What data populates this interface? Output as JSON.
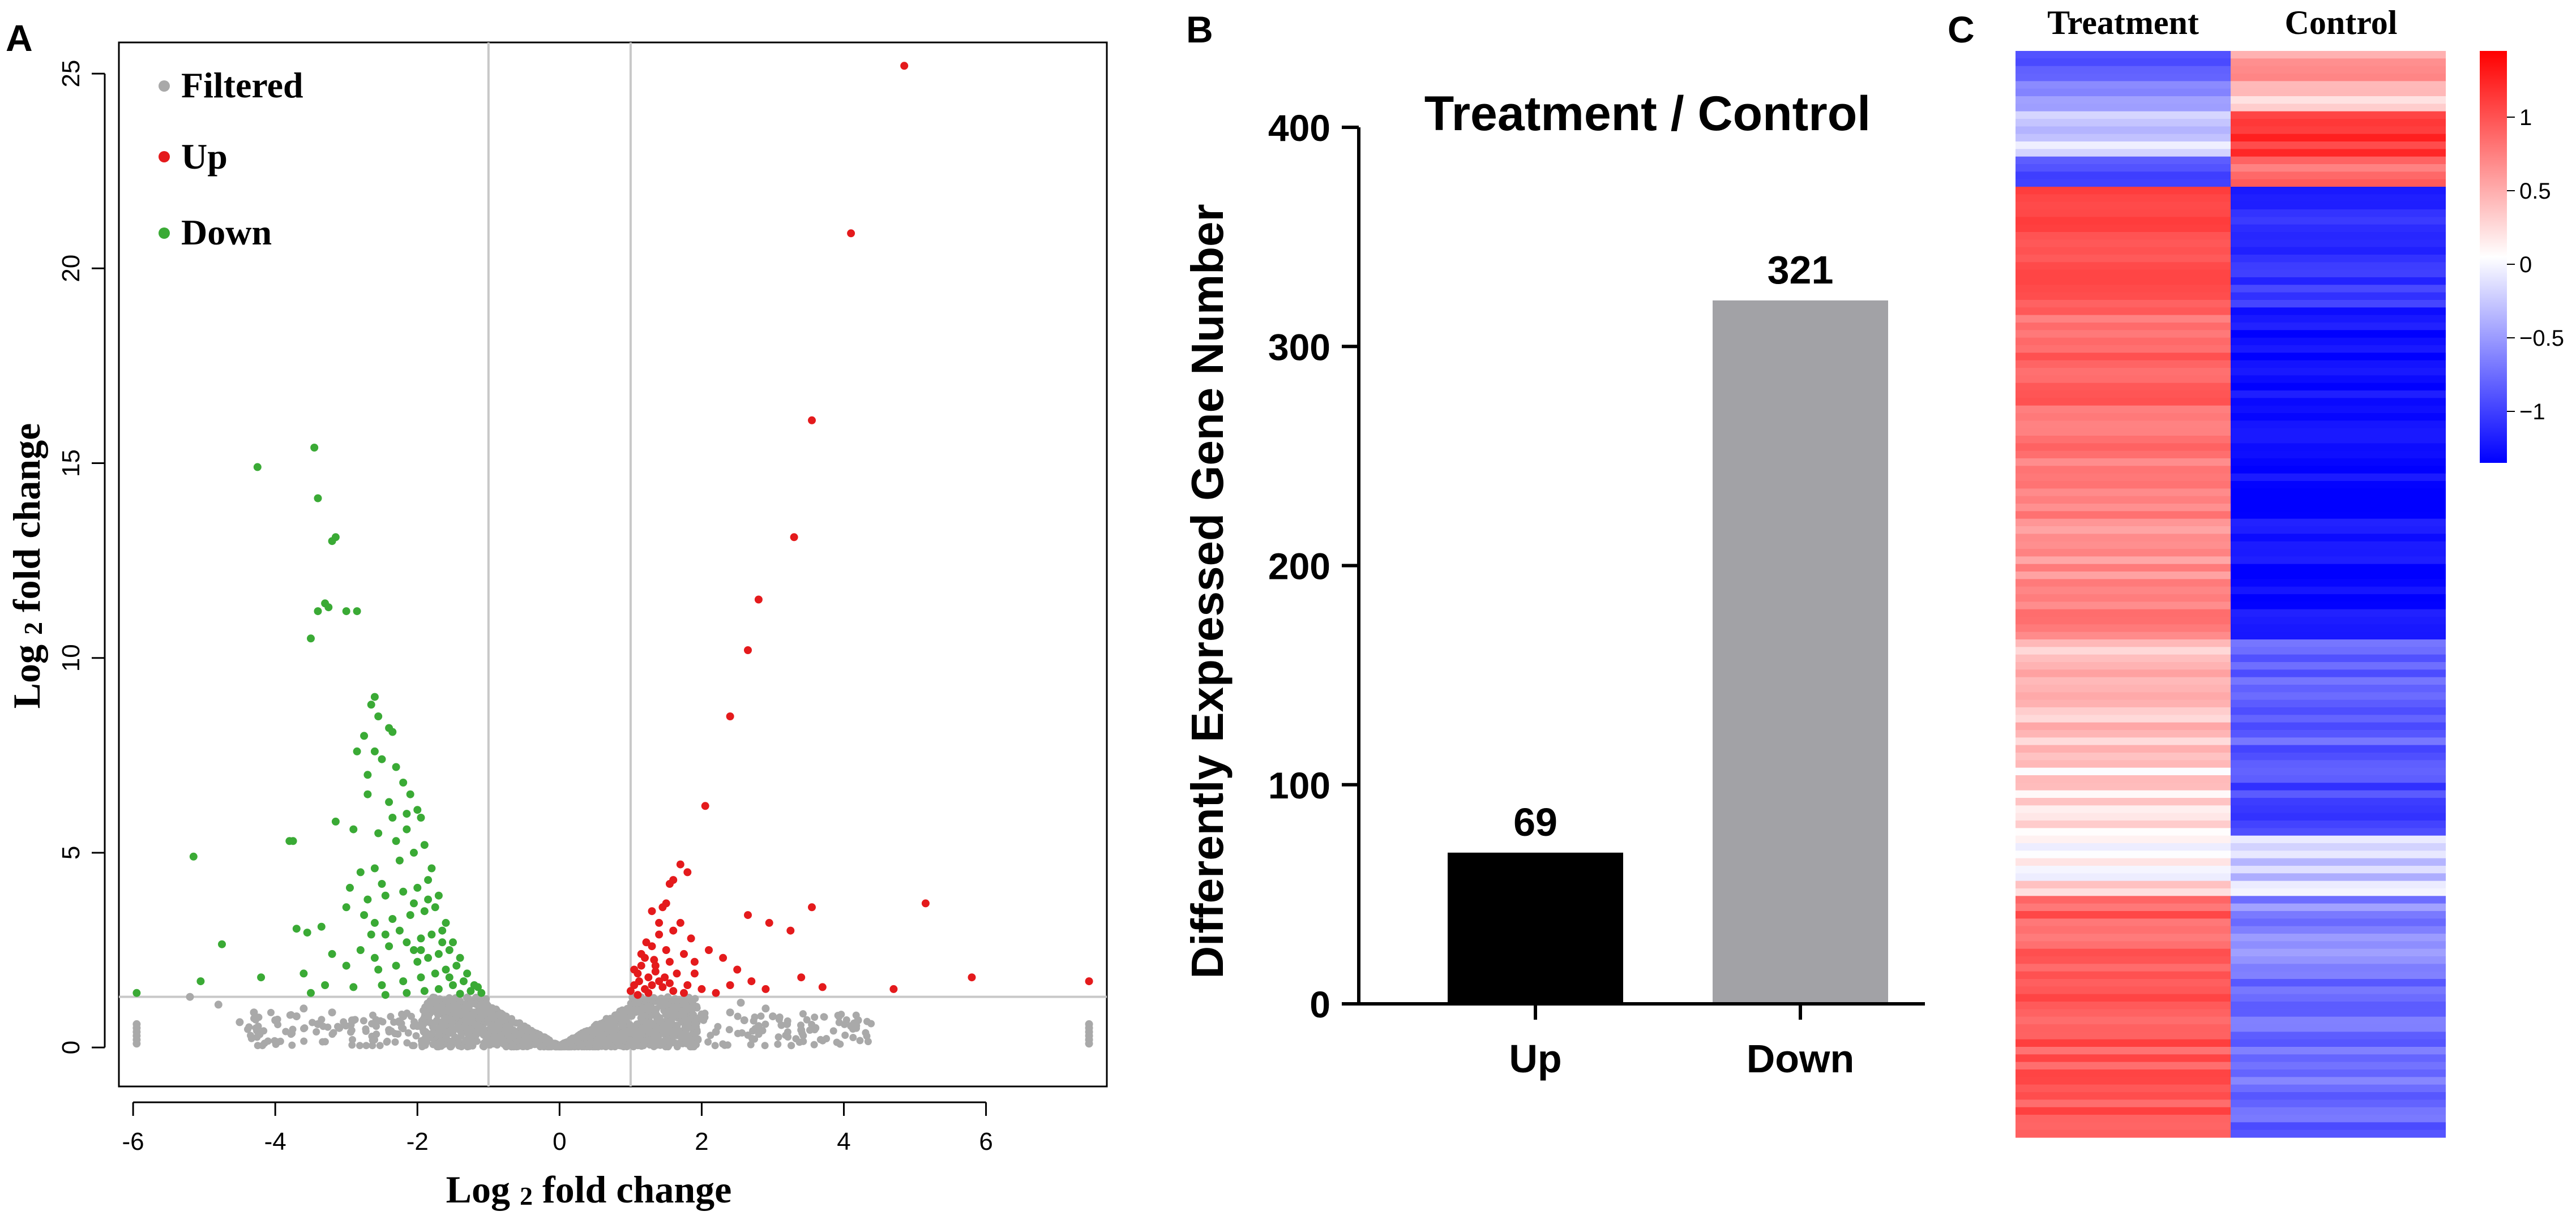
{
  "panels": {
    "a": "A",
    "b": "B",
    "c": "C"
  },
  "colors": {
    "filtered": "#a9a9a9",
    "up": "#e41a1c",
    "down": "#3aaa35",
    "bar_up": "#000000",
    "bar_down": "#a2a2a6",
    "heat_high": "#ff0000",
    "heat_mid": "#ffffff",
    "heat_low": "#0000ff",
    "threshold_line": "#c8c8c8"
  },
  "chart_data": [
    {
      "type": "scatter",
      "panel": "A",
      "title": "",
      "xlabel": "Log 2 fold change",
      "ylabel": "Log 2 fold change",
      "xlim": [
        -6.2,
        7.7
      ],
      "ylim": [
        -1.0,
        25.8
      ],
      "xticks": [
        -6,
        -4,
        -2,
        0,
        2,
        4,
        6
      ],
      "yticks": [
        0,
        5,
        10,
        15,
        20,
        25
      ],
      "thresholds": {
        "x": [
          -1,
          1
        ],
        "y": 1.3
      },
      "legend": [
        "Filtered",
        "Up",
        "Down"
      ],
      "legend_position": "top-left",
      "series": [
        {
          "name": "Up",
          "points": [
            [
              4.85,
              25.2
            ],
            [
              4.1,
              20.9
            ],
            [
              3.55,
              16.1
            ],
            [
              3.3,
              13.1
            ],
            [
              2.8,
              11.5
            ],
            [
              2.65,
              10.2
            ],
            [
              2.4,
              8.5
            ],
            [
              2.05,
              6.2
            ],
            [
              1.7,
              4.7
            ],
            [
              1.8,
              4.5
            ],
            [
              1.6,
              4.3
            ],
            [
              1.55,
              4.2
            ],
            [
              1.45,
              3.6
            ],
            [
              1.4,
              3.2
            ],
            [
              1.3,
              3.5
            ],
            [
              1.5,
              3.7
            ],
            [
              1.7,
              3.2
            ],
            [
              1.85,
              2.8
            ],
            [
              1.75,
              2.4
            ],
            [
              2.1,
              2.5
            ],
            [
              2.3,
              2.3
            ],
            [
              1.55,
              2.2
            ],
            [
              1.2,
              2.3
            ],
            [
              1.3,
              2.6
            ],
            [
              1.15,
              2.1
            ],
            [
              1.1,
              1.9
            ],
            [
              1.25,
              1.8
            ],
            [
              1.35,
              1.95
            ],
            [
              1.4,
              1.7
            ],
            [
              1.05,
              1.6
            ],
            [
              1.2,
              1.5
            ],
            [
              1.45,
              1.55
            ],
            [
              1.6,
              1.45
            ],
            [
              1.9,
              1.9
            ],
            [
              2.0,
              1.5
            ],
            [
              2.2,
              1.4
            ],
            [
              2.65,
              3.4
            ],
            [
              2.95,
              3.2
            ],
            [
              3.25,
              3.0
            ],
            [
              3.55,
              3.6
            ],
            [
              3.7,
              1.55
            ],
            [
              4.7,
              1.5
            ],
            [
              5.15,
              3.7
            ],
            [
              5.8,
              1.8
            ],
            [
              7.45,
              1.7
            ],
            [
              1.1,
              1.35
            ],
            [
              1.25,
              1.4
            ],
            [
              1.35,
              2.1
            ],
            [
              1.5,
              2.5
            ],
            [
              1.65,
              1.9
            ],
            [
              1.0,
              1.45
            ],
            [
              2.5,
              2.0
            ],
            [
              1.8,
              1.6
            ],
            [
              1.9,
              2.2
            ],
            [
              1.15,
              2.4
            ],
            [
              1.05,
              2.0
            ],
            [
              1.3,
              1.6
            ],
            [
              3.4,
              1.8
            ],
            [
              2.7,
              1.7
            ],
            [
              1.6,
              3.0
            ],
            [
              1.4,
              2.9
            ],
            [
              1.75,
              1.4
            ],
            [
              2.4,
              1.6
            ],
            [
              1.22,
              2.7
            ],
            [
              1.48,
              1.8
            ],
            [
              1.12,
              1.7
            ],
            [
              1.33,
              2.25
            ],
            [
              1.55,
              1.65
            ],
            [
              2.9,
              1.5
            ]
          ]
        },
        {
          "name": "Down",
          "points": [
            [
              -3.45,
              15.4
            ],
            [
              -4.25,
              14.9
            ],
            [
              -3.4,
              14.1
            ],
            [
              -3.15,
              13.1
            ],
            [
              -3.2,
              13.0
            ],
            [
              -3.3,
              11.4
            ],
            [
              -3.25,
              11.3
            ],
            [
              -3.4,
              11.2
            ],
            [
              -3.0,
              11.2
            ],
            [
              -2.85,
              11.2
            ],
            [
              -3.5,
              10.5
            ],
            [
              -2.6,
              9.0
            ],
            [
              -2.65,
              8.8
            ],
            [
              -2.55,
              8.5
            ],
            [
              -2.4,
              8.2
            ],
            [
              -2.35,
              8.1
            ],
            [
              -2.75,
              8.0
            ],
            [
              -2.85,
              7.6
            ],
            [
              -2.6,
              7.6
            ],
            [
              -2.5,
              7.4
            ],
            [
              -2.7,
              7.0
            ],
            [
              -2.3,
              7.2
            ],
            [
              -2.2,
              6.8
            ],
            [
              -2.1,
              6.5
            ],
            [
              -2.4,
              6.3
            ],
            [
              -2.0,
              6.1
            ],
            [
              -1.95,
              5.9
            ],
            [
              -2.15,
              5.6
            ],
            [
              -2.55,
              5.5
            ],
            [
              -2.9,
              5.6
            ],
            [
              -3.15,
              5.8
            ],
            [
              -3.8,
              5.3
            ],
            [
              -3.75,
              5.3
            ],
            [
              -5.15,
              4.9
            ],
            [
              -1.9,
              5.2
            ],
            [
              -2.05,
              5.0
            ],
            [
              -2.25,
              4.8
            ],
            [
              -2.6,
              4.6
            ],
            [
              -2.8,
              4.5
            ],
            [
              -1.8,
              4.6
            ],
            [
              -1.85,
              4.3
            ],
            [
              -2.0,
              4.1
            ],
            [
              -2.2,
              4.0
            ],
            [
              -2.45,
              3.9
            ],
            [
              -2.7,
              3.8
            ],
            [
              -3.0,
              3.6
            ],
            [
              -1.7,
              3.9
            ],
            [
              -1.75,
              3.6
            ],
            [
              -1.9,
              3.5
            ],
            [
              -2.1,
              3.4
            ],
            [
              -2.35,
              3.3
            ],
            [
              -2.6,
              3.2
            ],
            [
              -3.35,
              3.1
            ],
            [
              -3.55,
              2.95
            ],
            [
              -3.7,
              3.05
            ],
            [
              -4.75,
              2.65
            ],
            [
              -1.6,
              3.2
            ],
            [
              -1.65,
              3.0
            ],
            [
              -1.8,
              2.9
            ],
            [
              -1.95,
              2.8
            ],
            [
              -2.15,
              2.7
            ],
            [
              -2.4,
              2.6
            ],
            [
              -2.8,
              2.5
            ],
            [
              -3.2,
              2.4
            ],
            [
              -1.5,
              2.7
            ],
            [
              -1.55,
              2.5
            ],
            [
              -1.7,
              2.4
            ],
            [
              -1.85,
              2.3
            ],
            [
              -2.0,
              2.2
            ],
            [
              -2.3,
              2.1
            ],
            [
              -2.55,
              2.0
            ],
            [
              -3.0,
              2.1
            ],
            [
              -3.6,
              1.9
            ],
            [
              -4.2,
              1.8
            ],
            [
              -1.4,
              2.3
            ],
            [
              -1.45,
              2.1
            ],
            [
              -1.6,
              2.0
            ],
            [
              -1.75,
              1.9
            ],
            [
              -1.95,
              1.8
            ],
            [
              -2.2,
              1.7
            ],
            [
              -2.5,
              1.6
            ],
            [
              -2.9,
              1.55
            ],
            [
              -3.3,
              1.6
            ],
            [
              -5.05,
              1.7
            ],
            [
              -1.3,
              1.9
            ],
            [
              -1.35,
              1.7
            ],
            [
              -1.5,
              1.6
            ],
            [
              -1.7,
              1.5
            ],
            [
              -1.9,
              1.45
            ],
            [
              -2.15,
              1.4
            ],
            [
              -2.45,
              1.35
            ],
            [
              -3.5,
              1.4
            ],
            [
              -5.95,
              1.4
            ],
            [
              -1.2,
              1.6
            ],
            [
              -1.25,
              1.45
            ],
            [
              -1.4,
              1.38
            ],
            [
              -1.1,
              1.4
            ],
            [
              -1.15,
              1.55
            ],
            [
              -2.05,
              2.5
            ],
            [
              -2.25,
              3.0
            ],
            [
              -2.65,
              2.9
            ],
            [
              -1.85,
              3.8
            ],
            [
              -2.5,
              4.2
            ],
            [
              -2.95,
              4.1
            ],
            [
              -2.3,
              5.3
            ],
            [
              -2.15,
              6.0
            ],
            [
              -2.7,
              6.5
            ],
            [
              -2.35,
              5.9
            ],
            [
              -1.65,
              2.7
            ],
            [
              -1.55,
              1.8
            ],
            [
              -2.75,
              3.4
            ],
            [
              -2.05,
              3.7
            ],
            [
              -2.6,
              2.3
            ],
            [
              -1.95,
              2.5
            ],
            [
              -2.45,
              2.9
            ]
          ]
        },
        {
          "name": "Filtered",
          "points": [
            [
              -5.95,
              0.6
            ],
            [
              -5.95,
              0.5
            ],
            [
              -5.95,
              0.4
            ],
            [
              -5.95,
              0.3
            ],
            [
              -5.95,
              0.2
            ],
            [
              -5.95,
              0.1
            ],
            [
              7.45,
              0.6
            ],
            [
              7.45,
              0.5
            ],
            [
              7.45,
              0.4
            ],
            [
              7.45,
              0.3
            ],
            [
              7.45,
              0.2
            ],
            [
              7.45,
              0.1
            ],
            [
              -5.2,
              1.3
            ],
            [
              -4.8,
              1.1
            ],
            [
              -4.3,
              0.9
            ],
            [
              -4.0,
              0.7
            ],
            [
              -3.7,
              0.8
            ],
            [
              -3.4,
              0.6
            ],
            [
              -3.1,
              0.5
            ],
            [
              -2.9,
              0.7
            ],
            [
              -2.6,
              0.6
            ],
            [
              -2.4,
              0.45
            ],
            [
              -2.2,
              0.8
            ],
            [
              -2.0,
              0.55
            ],
            [
              -1.8,
              0.35
            ],
            [
              -1.6,
              0.75
            ],
            [
              -1.4,
              0.5
            ],
            [
              -1.2,
              0.9
            ],
            [
              -1.1,
              1.1
            ],
            [
              -3.6,
              1.0
            ],
            [
              -3.2,
              0.9
            ],
            [
              -4.5,
              0.65
            ],
            [
              2.4,
              0.9
            ],
            [
              2.6,
              0.7
            ],
            [
              2.8,
              0.55
            ],
            [
              3.0,
              0.8
            ],
            [
              3.2,
              0.6
            ],
            [
              3.4,
              0.45
            ],
            [
              3.6,
              0.5
            ],
            [
              4.1,
              0.55
            ],
            [
              4.2,
              0.7
            ],
            [
              2.2,
              0.4
            ],
            [
              2.0,
              0.85
            ],
            [
              1.8,
              0.6
            ],
            [
              1.6,
              0.3
            ],
            [
              1.4,
              0.7
            ],
            [
              1.2,
              1.0
            ],
            [
              1.1,
              1.15
            ],
            [
              2.55,
              1.15
            ],
            [
              2.9,
              1.0
            ]
          ]
        }
      ]
    },
    {
      "type": "bar",
      "panel": "B",
      "title": "Treatment / Control",
      "xlabel": "",
      "ylabel": "Differently Expressed Gene Number",
      "categories": [
        "Up",
        "Down"
      ],
      "values": [
        69,
        321
      ],
      "value_labels": [
        "69",
        "321"
      ],
      "ylim": [
        0,
        400
      ],
      "yticks": [
        0,
        100,
        200,
        300,
        400
      ]
    },
    {
      "type": "heatmap",
      "panel": "C",
      "columns": [
        "Treatment",
        "Control"
      ],
      "colorbar_ticks": [
        1,
        0.5,
        0,
        -0.5,
        -1
      ],
      "colorbar_labels": [
        "1",
        "0.5",
        "0",
        "−0.5",
        "−1"
      ],
      "colorbar_range": [
        -1.35,
        1.45
      ],
      "row_blocks": [
        {
          "rows": 4,
          "treatment": -0.75,
          "control": 0.45
        },
        {
          "rows": 4,
          "treatment": -0.55,
          "control": 0.2
        },
        {
          "rows": 6,
          "treatment": -0.15,
          "control": 1.1
        },
        {
          "rows": 4,
          "treatment": -0.8,
          "control": 0.7
        },
        {
          "rows": 16,
          "treatment": 0.95,
          "control": -1.05
        },
        {
          "rows": 20,
          "treatment": 0.75,
          "control": -1.25
        },
        {
          "rows": 24,
          "treatment": 0.55,
          "control": -1.3
        },
        {
          "rows": 16,
          "treatment": 0.3,
          "control": -0.75
        },
        {
          "rows": 10,
          "treatment": 0.15,
          "control": -0.9
        },
        {
          "rows": 8,
          "treatment": 0.1,
          "control": -0.2
        },
        {
          "rows": 10,
          "treatment": 0.8,
          "control": -0.55
        },
        {
          "rows": 22,
          "treatment": 0.85,
          "control": -0.7
        }
      ]
    }
  ]
}
